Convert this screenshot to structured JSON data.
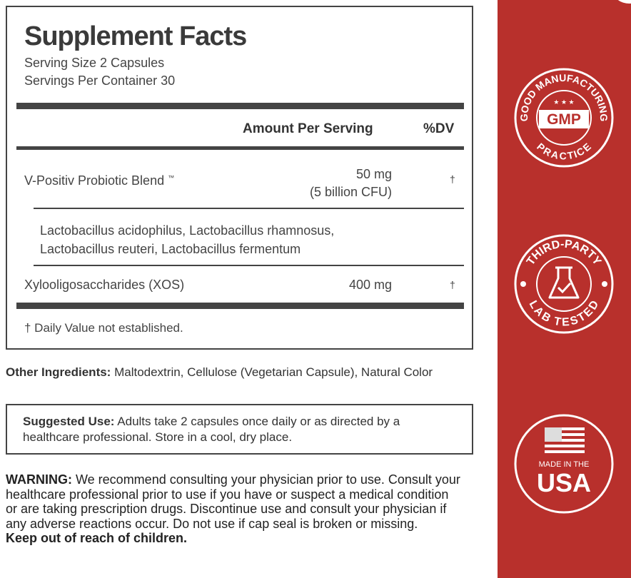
{
  "facts": {
    "title": "Supplement Facts",
    "serving_size": "Serving Size 2 Capsules",
    "servings_per_container": "Servings Per Container 30",
    "col_amount": "Amount Per Serving",
    "col_dv": "%DV",
    "rows": [
      {
        "name": "V-Positiv Probiotic Blend",
        "tm": "™",
        "amount": "50 mg",
        "amount2": "(5 billion CFU)",
        "dv": "†"
      },
      {
        "name": "Xylooligosaccharides (XOS)",
        "amount": "400 mg",
        "dv": "†"
      }
    ],
    "blend_strains": [
      "Lactobacillus acidophilus, Lactobacillus rhamnosus,",
      "Lactobacillus reuteri, Lactobacillus fermentum"
    ],
    "footnote": "† Daily Value not established."
  },
  "other_ingredients": {
    "label": "Other Ingredients:",
    "text": " Maltodextrin, Cellulose (Vegetarian Capsule), Natural Color"
  },
  "suggested_use": {
    "label": "Suggested Use:",
    "text": " Adults take 2 capsules once daily or as directed by a healthcare professional. Store in a cool, dry place."
  },
  "warning": {
    "label": "WARNING:",
    "text": " We recommend consulting your physician prior to use. Consult your healthcare professional prior to use if you have or suspect a medical condition or are taking prescription drugs. Discontinue use and consult your physician if any adverse reactions occur. Do not use if cap seal is broken or missing.",
    "bold_end": "Keep out of reach of children."
  },
  "badges": {
    "gmp": {
      "top": "GOOD MANUFACTURING",
      "center": "GMP",
      "bottom": "PRACTICE"
    },
    "lab": {
      "top": "THIRD-PARTY",
      "bottom": "LAB TESTED"
    },
    "usa": {
      "small": "MADE IN THE",
      "big": "USA"
    }
  },
  "colors": {
    "panel": "#b8302c",
    "text": "#333333"
  }
}
